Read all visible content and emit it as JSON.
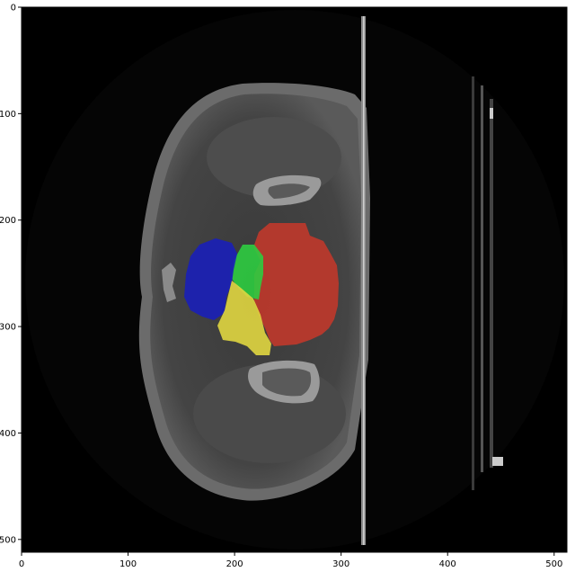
{
  "figure": {
    "type": "ct-slice-with-segmentation-overlay",
    "background_color": "#ffffff",
    "image_background": "#000000",
    "overlay_colors": {
      "red": "#c0392b",
      "blue": "#1a1fb8",
      "green": "#2ecc40",
      "yellow": "#e0d640"
    }
  },
  "axes": {
    "x_ticks": [
      "0",
      "100",
      "200",
      "300",
      "400",
      "500"
    ],
    "y_ticks": [
      "0",
      "100",
      "200",
      "300",
      "400",
      "500"
    ],
    "xlim": [
      0,
      512
    ],
    "ylim": [
      512,
      0
    ]
  }
}
